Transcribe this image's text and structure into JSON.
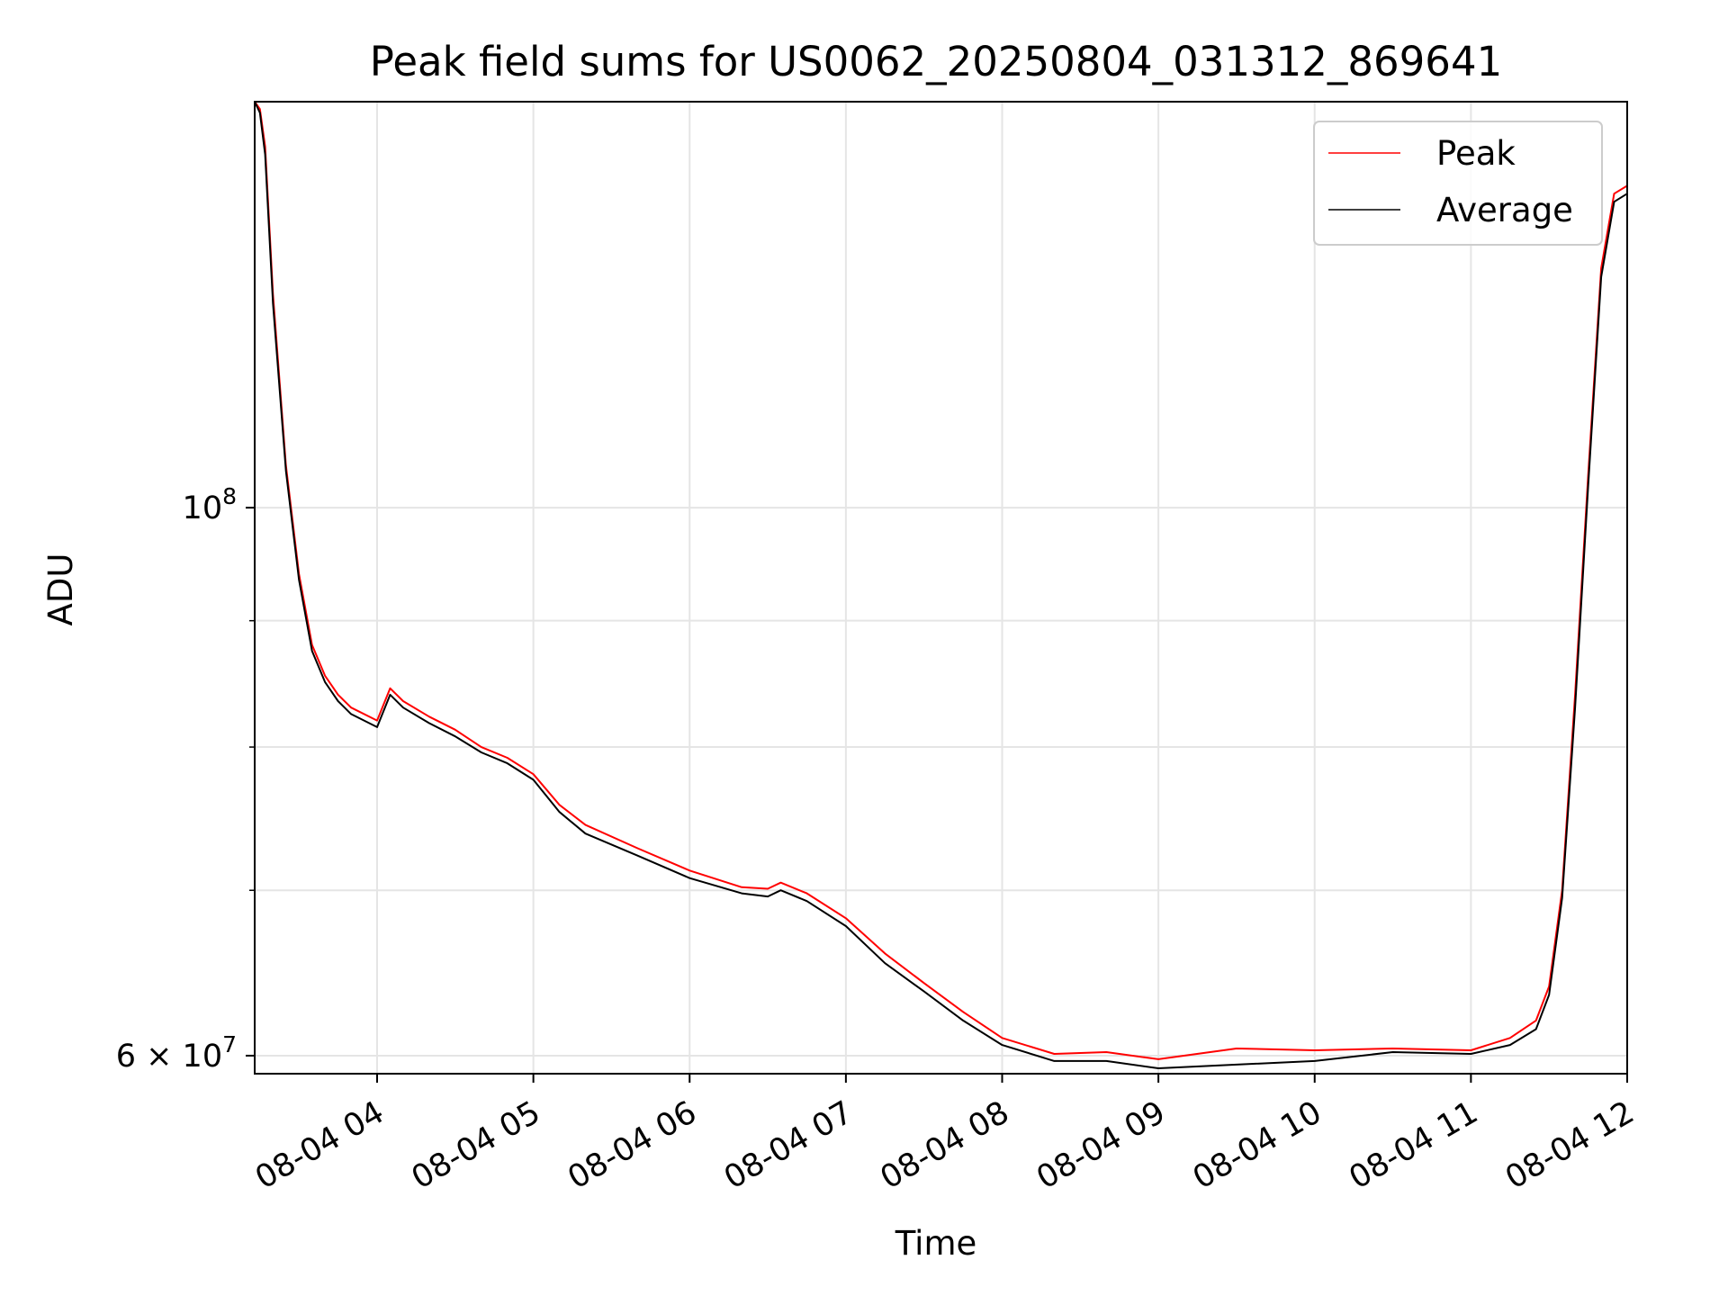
{
  "chart_data": {
    "type": "line",
    "title": "Peak field sums for US0062_20250804_031312_869641",
    "xlabel": "Time",
    "ylabel": "ADU",
    "x_axis": {
      "type": "time",
      "range": [
        "2025-08-04 03:13",
        "2025-08-04 12:00"
      ],
      "ticks": [
        {
          "value": "2025-08-04 04:00",
          "label": "08-04 04"
        },
        {
          "value": "2025-08-04 05:00",
          "label": "08-04 05"
        },
        {
          "value": "2025-08-04 06:00",
          "label": "08-04 06"
        },
        {
          "value": "2025-08-04 07:00",
          "label": "08-04 07"
        },
        {
          "value": "2025-08-04 08:00",
          "label": "08-04 08"
        },
        {
          "value": "2025-08-04 09:00",
          "label": "08-04 09"
        },
        {
          "value": "2025-08-04 10:00",
          "label": "08-04 10"
        },
        {
          "value": "2025-08-04 11:00",
          "label": "08-04 11"
        },
        {
          "value": "2025-08-04 12:00",
          "label": "08-04 12"
        }
      ]
    },
    "y_axis": {
      "scale": "log",
      "range": [
        59000000,
        146000000
      ],
      "major_ticks": [
        {
          "value": 60000000,
          "base": "6 × 10",
          "exp": "7"
        },
        {
          "value": 100000000,
          "base": "10",
          "exp": "8"
        }
      ],
      "minor_ticks": [
        70000000,
        80000000,
        90000000
      ]
    },
    "grid": true,
    "legend_position": "top-right",
    "series": [
      {
        "name": "Peak",
        "color": "#ff0000",
        "x": [
          "2025-08-04 03:13",
          "2025-08-04 03:15",
          "2025-08-04 03:17",
          "2025-08-04 03:20",
          "2025-08-04 03:25",
          "2025-08-04 03:30",
          "2025-08-04 03:35",
          "2025-08-04 03:40",
          "2025-08-04 03:45",
          "2025-08-04 03:50",
          "2025-08-04 04:00",
          "2025-08-04 04:05",
          "2025-08-04 04:10",
          "2025-08-04 04:20",
          "2025-08-04 04:30",
          "2025-08-04 04:40",
          "2025-08-04 04:50",
          "2025-08-04 05:00",
          "2025-08-04 05:10",
          "2025-08-04 05:20",
          "2025-08-04 05:40",
          "2025-08-04 06:00",
          "2025-08-04 06:20",
          "2025-08-04 06:30",
          "2025-08-04 06:35",
          "2025-08-04 06:45",
          "2025-08-04 07:00",
          "2025-08-04 07:15",
          "2025-08-04 07:30",
          "2025-08-04 07:45",
          "2025-08-04 08:00",
          "2025-08-04 08:20",
          "2025-08-04 08:40",
          "2025-08-04 09:00",
          "2025-08-04 09:30",
          "2025-08-04 10:00",
          "2025-08-04 10:30",
          "2025-08-04 11:00",
          "2025-08-04 11:15",
          "2025-08-04 11:25",
          "2025-08-04 11:30",
          "2025-08-04 11:35",
          "2025-08-04 11:40",
          "2025-08-04 11:45",
          "2025-08-04 11:50",
          "2025-08-04 11:55",
          "2025-08-04 12:00"
        ],
        "y": [
          146000000,
          145000000,
          140000000,
          122000000,
          104000000,
          94000000,
          88000000,
          85500000,
          84000000,
          83000000,
          82000000,
          84500000,
          83500000,
          82300000,
          81300000,
          80000000,
          79200000,
          78000000,
          75800000,
          74400000,
          72800000,
          71300000,
          70200000,
          70100000,
          70500000,
          69800000,
          68200000,
          66000000,
          64200000,
          62500000,
          61000000,
          60100000,
          60200000,
          59800000,
          60400000,
          60300000,
          60400000,
          60300000,
          61000000,
          62000000,
          64000000,
          70000000,
          84000000,
          103000000,
          125000000,
          134000000,
          135000000
        ]
      },
      {
        "name": "Average",
        "color": "#000000",
        "x": [
          "2025-08-04 03:13",
          "2025-08-04 03:15",
          "2025-08-04 03:17",
          "2025-08-04 03:20",
          "2025-08-04 03:25",
          "2025-08-04 03:30",
          "2025-08-04 03:35",
          "2025-08-04 03:40",
          "2025-08-04 03:45",
          "2025-08-04 03:50",
          "2025-08-04 04:00",
          "2025-08-04 04:05",
          "2025-08-04 04:10",
          "2025-08-04 04:20",
          "2025-08-04 04:30",
          "2025-08-04 04:40",
          "2025-08-04 04:50",
          "2025-08-04 05:00",
          "2025-08-04 05:10",
          "2025-08-04 05:20",
          "2025-08-04 05:40",
          "2025-08-04 06:00",
          "2025-08-04 06:20",
          "2025-08-04 06:30",
          "2025-08-04 06:35",
          "2025-08-04 06:45",
          "2025-08-04 07:00",
          "2025-08-04 07:15",
          "2025-08-04 07:30",
          "2025-08-04 07:45",
          "2025-08-04 08:00",
          "2025-08-04 08:20",
          "2025-08-04 08:40",
          "2025-08-04 09:00",
          "2025-08-04 09:30",
          "2025-08-04 10:00",
          "2025-08-04 10:30",
          "2025-08-04 11:00",
          "2025-08-04 11:15",
          "2025-08-04 11:25",
          "2025-08-04 11:30",
          "2025-08-04 11:35",
          "2025-08-04 11:40",
          "2025-08-04 11:45",
          "2025-08-04 11:50",
          "2025-08-04 11:55",
          "2025-08-04 12:00"
        ],
        "y": [
          146000000,
          144500000,
          139000000,
          121000000,
          103500000,
          93500000,
          87500000,
          85000000,
          83500000,
          82500000,
          81500000,
          84000000,
          83000000,
          81800000,
          80800000,
          79600000,
          78800000,
          77600000,
          75300000,
          73800000,
          72300000,
          70800000,
          69800000,
          69600000,
          70000000,
          69300000,
          67700000,
          65400000,
          63700000,
          62000000,
          60600000,
          59700000,
          59700000,
          59300000,
          59500000,
          59700000,
          60200000,
          60100000,
          60600000,
          61500000,
          63500000,
          69500000,
          83000000,
          102000000,
          124000000,
          133000000,
          134000000
        ]
      }
    ]
  }
}
